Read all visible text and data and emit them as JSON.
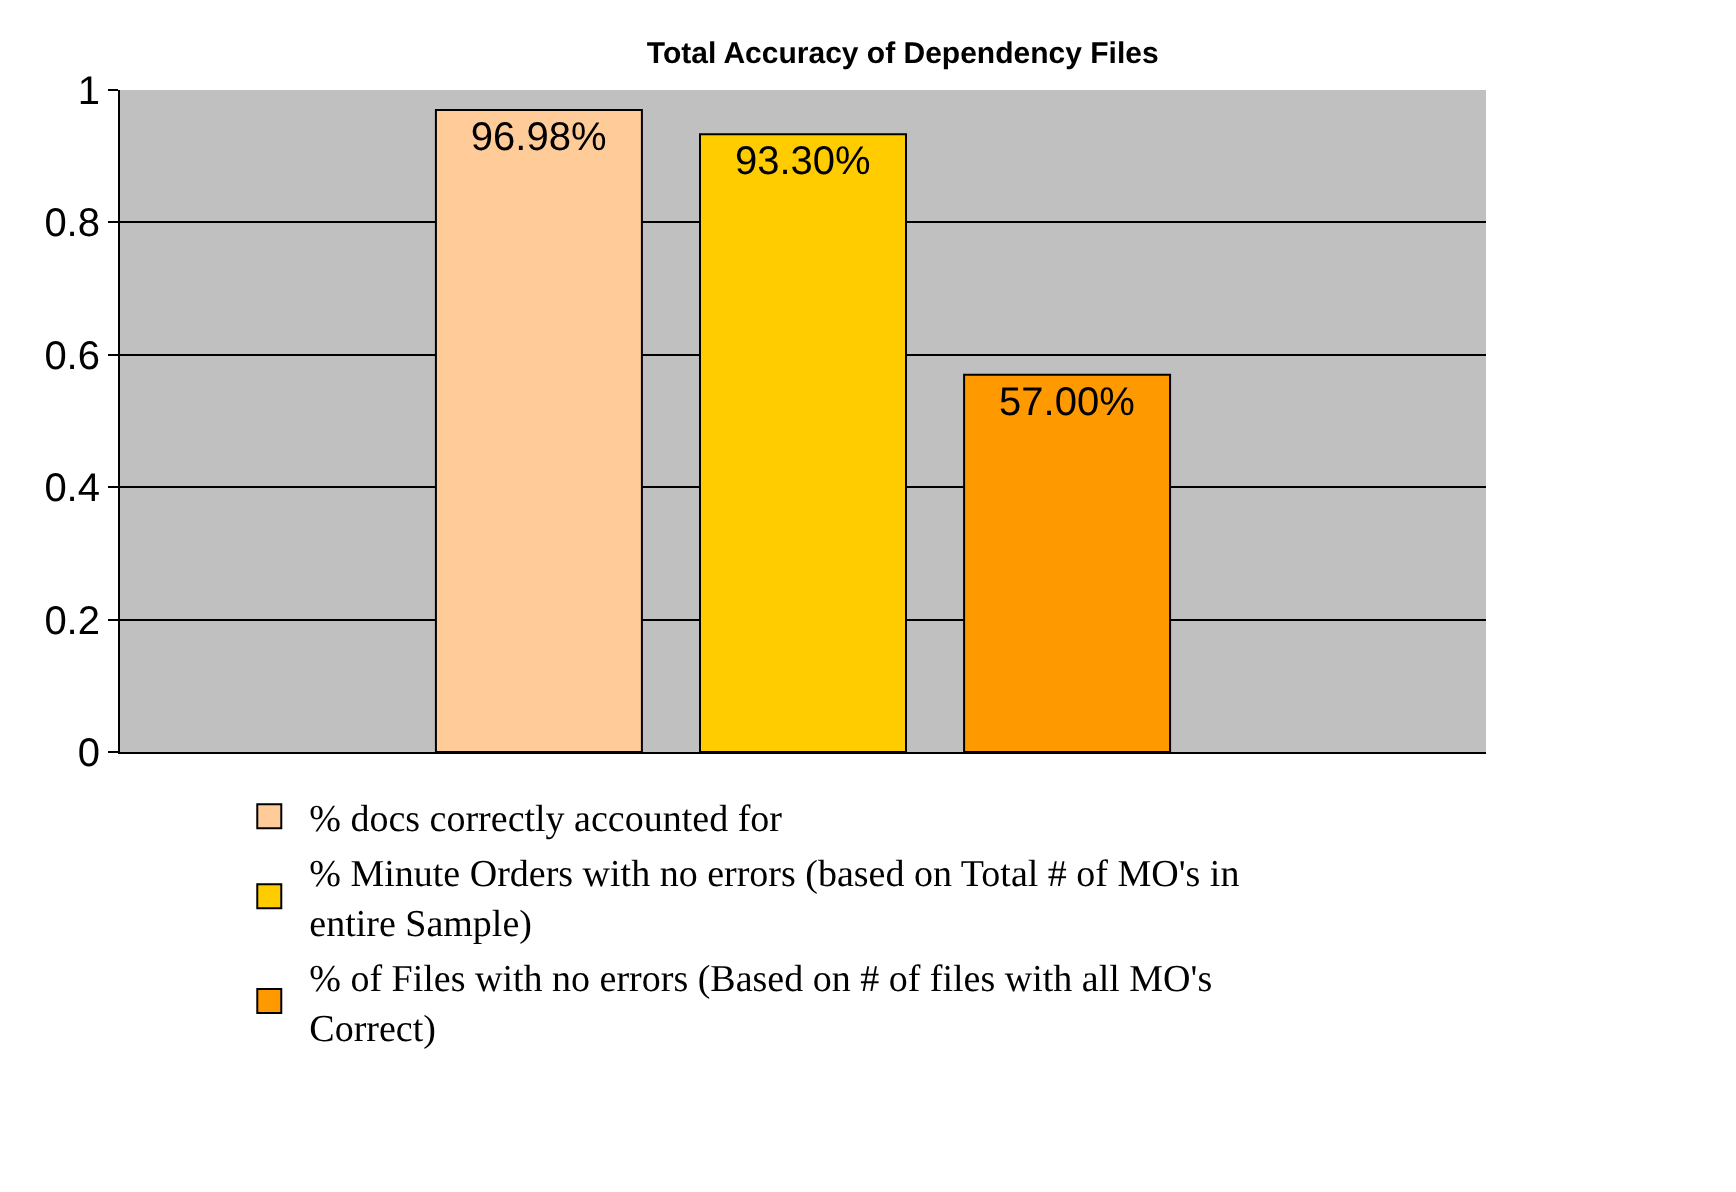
{
  "chart_data": {
    "type": "bar",
    "title": "Total Accuracy of Dependency Files",
    "categories": [
      null
    ],
    "series": [
      {
        "name": "% docs correctly accounted for",
        "color": "#ffcc99",
        "values": [
          0.9698
        ],
        "value_labels": [
          "96.98%"
        ]
      },
      {
        "name": "% Minute Orders with no errors (based on Total # of MO's in entire Sample)",
        "color": "#ffcc00",
        "values": [
          0.933
        ],
        "value_labels": [
          "93.30%"
        ]
      },
      {
        "name": "% of Files with no errors (Based on # of files with all MO's Correct)",
        "color": "#ff9900",
        "values": [
          0.57
        ],
        "value_labels": [
          "57.00%"
        ]
      }
    ],
    "ylim": [
      0,
      1
    ],
    "yticks": [
      0,
      0.2,
      0.4,
      0.6,
      0.8,
      1
    ],
    "grid": "y",
    "legend": "bottom"
  }
}
